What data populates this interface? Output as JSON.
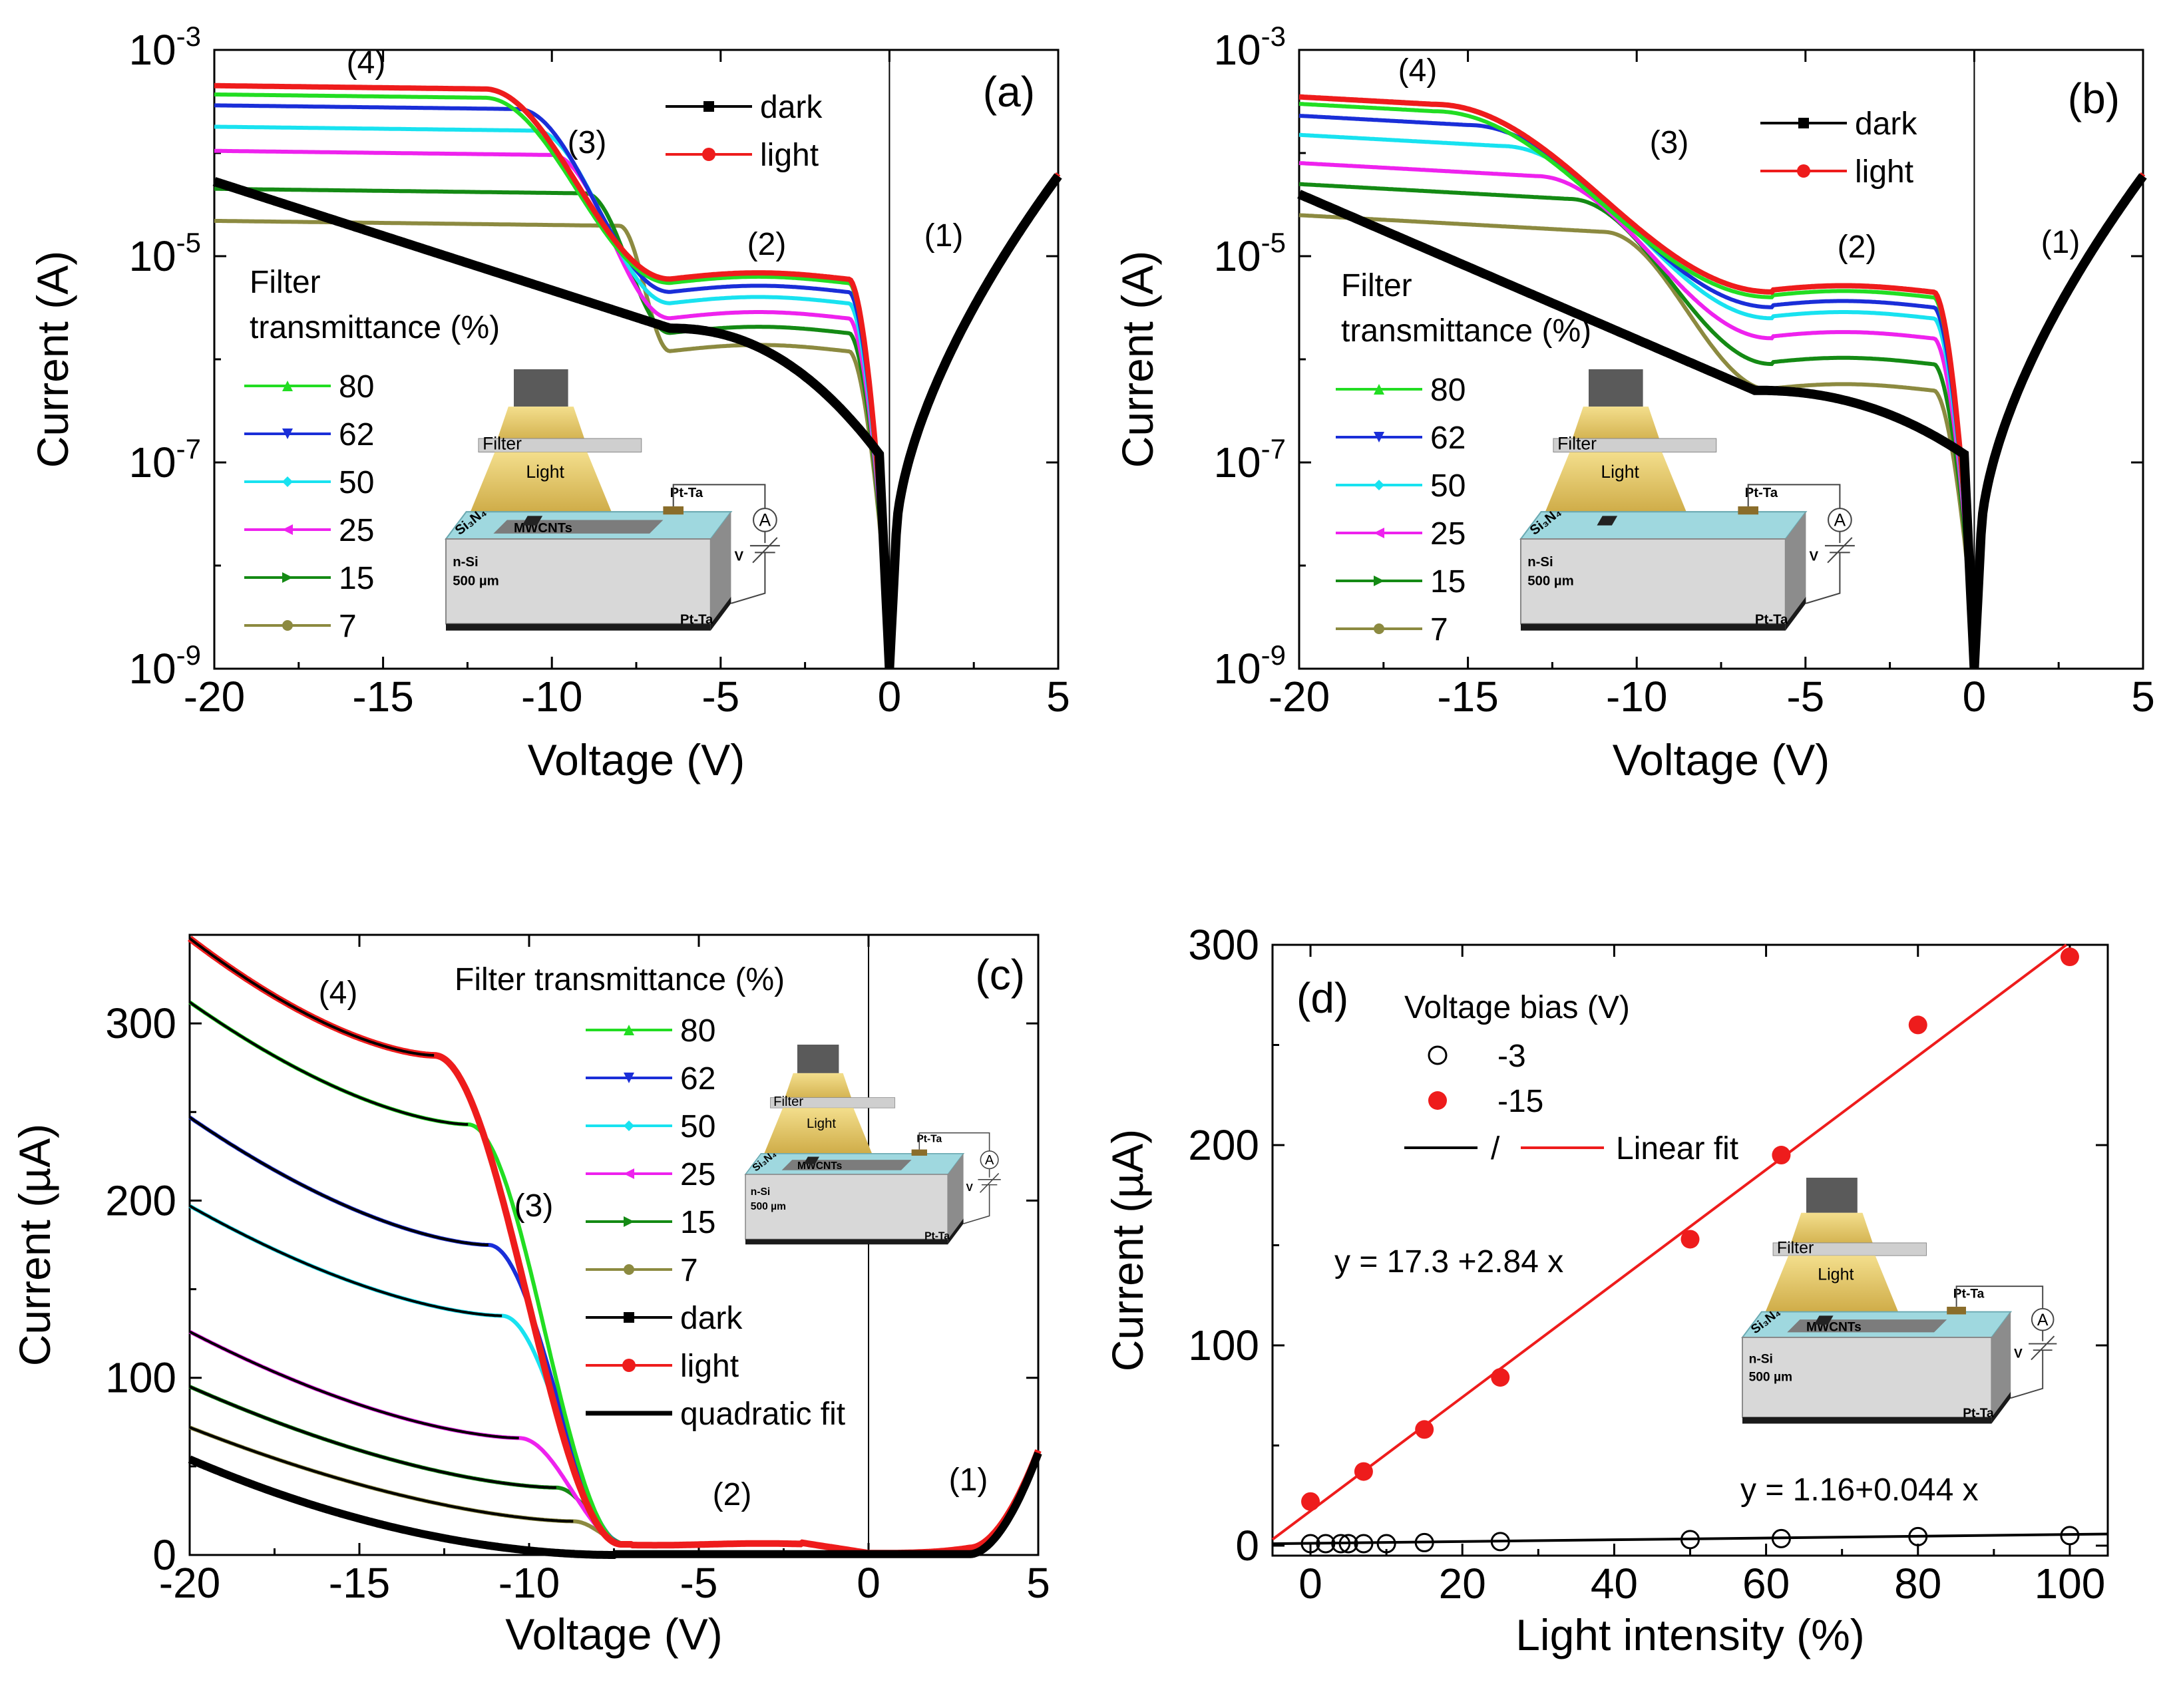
{
  "figure": {
    "colors": {
      "80": "#22dd22",
      "62": "#1a2ed8",
      "50": "#18e2f0",
      "25": "#ee22ee",
      "15": "#148a14",
      "7": "#8c8a40",
      "dark": "#000000",
      "light": "#ee1c1c"
    },
    "diagram": {
      "filter": "Filter",
      "light": "Light",
      "pt_ta": "Pt-Ta",
      "si3n4": "Si₃N₄",
      "mwcnts": "MWCNTs",
      "n_si": "n-Si",
      "thickness": "500 µm",
      "ammeter": "A",
      "v": "V"
    }
  },
  "chart_data": [
    {
      "id": "a",
      "panel_label": "(a)",
      "type": "line",
      "yscale": "log",
      "xlabel": "Voltage (V)",
      "ylabel": "Current (A)",
      "xlim": [
        -20,
        5
      ],
      "ylim": [
        1e-09,
        0.001
      ],
      "x_ticks": [
        "-20",
        "-15",
        "-10",
        "-5",
        "0",
        "5"
      ],
      "y_ticks": [
        {
          "base": "10",
          "exp": "-9"
        },
        {
          "base": "10",
          "exp": "-7"
        },
        {
          "base": "10",
          "exp": "-5"
        },
        {
          "base": "10",
          "exp": "-3"
        }
      ],
      "legend_top": [
        {
          "key": "dark",
          "label": "dark"
        },
        {
          "key": "light",
          "label": "light"
        }
      ],
      "legend_title": [
        "Filter",
        "transmittance (%)"
      ],
      "legend_filter": [
        {
          "key": "80",
          "label": "80"
        },
        {
          "key": "62",
          "label": "62"
        },
        {
          "key": "50",
          "label": "50"
        },
        {
          "key": "25",
          "label": "25"
        },
        {
          "key": "15",
          "label": "15"
        },
        {
          "key": "7",
          "label": " 7"
        }
      ],
      "regions": [
        "(1)",
        "(2)",
        "(3)",
        "(4)"
      ],
      "series": [
        {
          "key": "light",
          "plateau": 0.00045,
          "knee": -12,
          "r2": 6e-06,
          "k2": -2.5
        },
        {
          "key": "80",
          "plateau": 0.00037,
          "knee": -12,
          "r2": 5.5e-06,
          "k2": -2.5
        },
        {
          "key": "62",
          "plateau": 0.00029,
          "knee": -11,
          "r2": 4.5e-06,
          "k2": -2.5
        },
        {
          "key": "50",
          "plateau": 0.00018,
          "knee": -10.5,
          "r2": 3.5e-06,
          "k2": -2.5
        },
        {
          "key": "25",
          "plateau": 0.000105,
          "knee": -10,
          "r2": 2.5e-06,
          "k2": -2.5
        },
        {
          "key": "15",
          "plateau": 4.5e-05,
          "knee": -9,
          "r2": 1.8e-06,
          "k2": -2.5
        },
        {
          "key": "7",
          "plateau": 2.2e-05,
          "knee": -8,
          "r2": 1.2e-06,
          "k2": -2.5
        }
      ]
    },
    {
      "id": "b",
      "panel_label": "(b)",
      "type": "line",
      "yscale": "log",
      "xlabel": "Voltage (V)",
      "ylabel": "Current (A)",
      "xlim": [
        -20,
        5
      ],
      "ylim": [
        1e-09,
        0.001
      ],
      "x_ticks": [
        "-20",
        "-15",
        "-10",
        "-5",
        "0",
        "5"
      ],
      "y_ticks": [
        {
          "base": "10",
          "exp": "-9"
        },
        {
          "base": "10",
          "exp": "-7"
        },
        {
          "base": "10",
          "exp": "-5"
        },
        {
          "base": "10",
          "exp": "-3"
        }
      ],
      "legend_top": [
        {
          "key": "dark",
          "label": "dark"
        },
        {
          "key": "light",
          "label": "light"
        }
      ],
      "legend_title": [
        "Filter",
        "transmittance (%)"
      ],
      "legend_filter": [
        {
          "key": "80",
          "label": "80"
        },
        {
          "key": "62",
          "label": "62"
        },
        {
          "key": "50",
          "label": "50"
        },
        {
          "key": "25",
          "label": "25"
        },
        {
          "key": "15",
          "label": "15"
        },
        {
          "key": "7",
          "label": " 7"
        }
      ],
      "regions": [
        "(1)",
        "(2)",
        "(3)",
        "(4)"
      ],
      "series": [
        {
          "key": "light",
          "plateau": 0.00035,
          "knee": -16,
          "r2": 4.5e-06,
          "k2": -3
        },
        {
          "key": "80",
          "plateau": 0.0003,
          "knee": -16,
          "r2": 4e-06,
          "k2": -3
        },
        {
          "key": "62",
          "plateau": 0.00023,
          "knee": -15,
          "r2": 3.2e-06,
          "k2": -3
        },
        {
          "key": "50",
          "plateau": 0.00015,
          "knee": -14,
          "r2": 2.5e-06,
          "k2": -3
        },
        {
          "key": "25",
          "plateau": 8e-05,
          "knee": -13,
          "r2": 1.6e-06,
          "k2": -3
        },
        {
          "key": "15",
          "plateau": 5e-05,
          "knee": -12,
          "r2": 9e-07,
          "k2": -3
        },
        {
          "key": "7",
          "plateau": 2.5e-05,
          "knee": -11,
          "r2": 5e-07,
          "k2": -3
        }
      ]
    },
    {
      "id": "c",
      "panel_label": "(c)",
      "type": "line",
      "yscale": "linear",
      "xlabel": "Voltage (V)",
      "ylabel": "Current (µA)",
      "xlim": [
        -20,
        5
      ],
      "ylim": [
        0,
        350
      ],
      "x_ticks": [
        -20,
        -15,
        -10,
        -5,
        0,
        5
      ],
      "y_ticks": [
        0,
        100,
        200,
        300
      ],
      "legend_title": [
        "Filter transmittance (%)"
      ],
      "legend_filter": [
        {
          "key": "80",
          "label": "80"
        },
        {
          "key": "62",
          "label": "62"
        },
        {
          "key": "50",
          "label": "50"
        },
        {
          "key": "25",
          "label": "25"
        },
        {
          "key": "15",
          "label": "15"
        },
        {
          "key": "7",
          "label": " 7"
        }
      ],
      "legend_extra": [
        {
          "key": "dark",
          "label": "dark"
        },
        {
          "key": "light",
          "label": "light"
        },
        {
          "key": "fit",
          "label": "quadratic fit"
        }
      ],
      "regions": [
        "(1)",
        "(2)",
        "(3)",
        "(4)"
      ],
      "series": [
        {
          "key": "light",
          "y20": 348,
          "knee": -12.8,
          "ykn": 282
        },
        {
          "key": "80",
          "y20": 312,
          "knee": -11.8,
          "ykn": 243
        },
        {
          "key": "62",
          "y20": 247,
          "knee": -11.2,
          "ykn": 175
        },
        {
          "key": "50",
          "y20": 197,
          "knee": -10.8,
          "ykn": 135
        },
        {
          "key": "25",
          "y20": 126,
          "knee": -10.3,
          "ykn": 66
        },
        {
          "key": "15",
          "y20": 95,
          "knee": -9.2,
          "ykn": 38
        },
        {
          "key": "7",
          "y20": 72,
          "knee": -8.7,
          "ykn": 19
        },
        {
          "key": "dark",
          "y20": 54,
          "knee": -7.2,
          "ykn": 2
        }
      ]
    },
    {
      "id": "d",
      "panel_label": "(d)",
      "type": "scatter",
      "xlabel": "Light intensity (%)",
      "ylabel": "Current (µA)",
      "xlim": [
        -5,
        105
      ],
      "ylim": [
        -5,
        300
      ],
      "x_ticks": [
        0,
        20,
        40,
        60,
        80,
        100
      ],
      "y_ticks": [
        0,
        100,
        200,
        300
      ],
      "legend_title": "Voltage bias (V)",
      "legend": [
        {
          "key": "-3",
          "label": "-3"
        },
        {
          "key": "-15",
          "label": "-15"
        }
      ],
      "fit_legend": {
        "slash": "/",
        "label": "Linear fit"
      },
      "series": [
        {
          "name": "-3",
          "x": [
            0,
            2,
            4,
            5,
            7,
            10,
            15,
            25,
            50,
            62,
            80,
            100
          ],
          "y": [
            1,
            1,
            1,
            1,
            1,
            1,
            1.5,
            2,
            3,
            3.5,
            4.5,
            5
          ]
        },
        {
          "name": "-15",
          "x": [
            0,
            7,
            15,
            25,
            50,
            62,
            80,
            100
          ],
          "y": [
            22,
            37,
            58,
            84,
            153,
            195,
            260,
            294
          ]
        }
      ],
      "fits": [
        {
          "series": "-3",
          "intercept": 1.16,
          "slope": 0.044,
          "label": "y = 1.16+0.044 x"
        },
        {
          "series": "-15",
          "intercept": 17.3,
          "slope": 2.84,
          "label": "y = 17.3 +2.84 x"
        }
      ]
    }
  ]
}
